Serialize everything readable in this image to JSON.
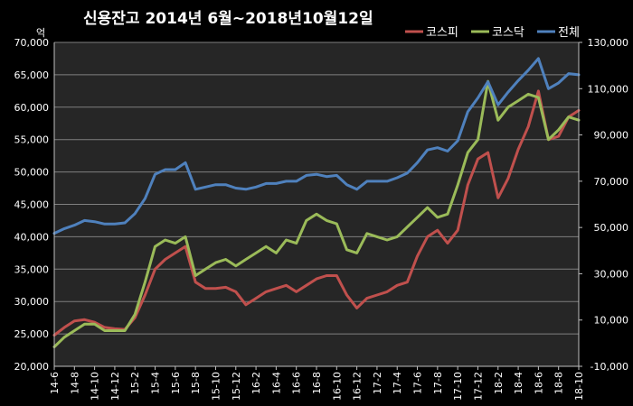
{
  "chart_data": {
    "type": "line",
    "title": "신용잔고  2014년 6월~2018년10월12일",
    "y_left_unit": "억",
    "legend_position": "top-right",
    "grid": true,
    "x_tick_labels": [
      "14-6",
      "14-8",
      "14-10",
      "14-12",
      "15-2",
      "15-4",
      "15-6",
      "15-8",
      "15-10",
      "15-12",
      "16-2",
      "16-4",
      "16-6",
      "16-8",
      "16-10",
      "16-12",
      "17-2",
      "17-4",
      "17-6",
      "17-8",
      "17-10",
      "17-12",
      "18-2",
      "18-4",
      "18-6",
      "18-8",
      "18-10"
    ],
    "y_left": {
      "min": 20000,
      "max": 70000,
      "step": 5000,
      "tick_labels": [
        "20,000",
        "25,000",
        "30,000",
        "35,000",
        "40,000",
        "45,000",
        "50,000",
        "55,000",
        "60,000",
        "65,000",
        "70,000"
      ]
    },
    "y_right": {
      "min": -10000,
      "max": 130000,
      "step": 20000,
      "tick_labels": [
        "-10,000",
        "10,000",
        "30,000",
        "50,000",
        "70,000",
        "90,000",
        "110,000",
        "130,000"
      ]
    },
    "x": [
      "2014-06",
      "2014-07",
      "2014-08",
      "2014-09",
      "2014-10",
      "2014-11",
      "2014-12",
      "2015-01",
      "2015-02",
      "2015-03",
      "2015-04",
      "2015-05",
      "2015-06",
      "2015-07",
      "2015-08",
      "2015-09",
      "2015-10",
      "2015-11",
      "2015-12",
      "2016-01",
      "2016-02",
      "2016-03",
      "2016-04",
      "2016-05",
      "2016-06",
      "2016-07",
      "2016-08",
      "2016-09",
      "2016-10",
      "2016-11",
      "2016-12",
      "2017-01",
      "2017-02",
      "2017-03",
      "2017-04",
      "2017-05",
      "2017-06",
      "2017-07",
      "2017-08",
      "2017-09",
      "2017-10",
      "2017-11",
      "2017-12",
      "2018-01",
      "2018-02",
      "2018-03",
      "2018-04",
      "2018-05",
      "2018-06",
      "2018-07",
      "2018-08",
      "2018-09",
      "2018-10"
    ],
    "series": [
      {
        "name": "코스피",
        "axis": "left",
        "color": "#c0504d",
        "values": [
          24800,
          26000,
          27000,
          27200,
          26800,
          26000,
          25800,
          25700,
          27500,
          31000,
          35000,
          36500,
          37500,
          38500,
          33000,
          32000,
          32000,
          32200,
          31500,
          29500,
          30500,
          31500,
          32000,
          32500,
          31500,
          32500,
          33500,
          34000,
          34000,
          31000,
          29000,
          30500,
          31000,
          31500,
          32500,
          33000,
          37000,
          40000,
          41000,
          39000,
          41000,
          48000,
          52000,
          53000,
          46000,
          49000,
          53500,
          57000,
          62500,
          55000,
          55500,
          58500,
          59500
        ]
      },
      {
        "name": "코스닥",
        "axis": "left",
        "color": "#9bbb59",
        "values": [
          23000,
          24500,
          25500,
          26500,
          26500,
          25500,
          25500,
          25500,
          28000,
          33000,
          38500,
          39500,
          39000,
          40000,
          34000,
          35000,
          36000,
          36500,
          35500,
          36500,
          37500,
          38500,
          37500,
          39500,
          39000,
          42500,
          43500,
          42500,
          42000,
          38000,
          37500,
          40500,
          40000,
          39500,
          40000,
          41500,
          43000,
          44500,
          43000,
          43500,
          48000,
          53000,
          55000,
          64000,
          58000,
          60000,
          61000,
          62000,
          61500,
          55000,
          56500,
          58500,
          58000
        ]
      },
      {
        "name": "전체",
        "axis": "right",
        "color": "#4f81bd",
        "values": [
          47500,
          49500,
          51000,
          53000,
          52500,
          51500,
          51500,
          52000,
          56000,
          62500,
          73000,
          75000,
          75000,
          78000,
          66500,
          67500,
          68500,
          68500,
          67000,
          66500,
          67500,
          69000,
          69000,
          70000,
          70000,
          72500,
          73000,
          72000,
          72500,
          68500,
          66500,
          70000,
          70000,
          70000,
          71500,
          73500,
          78000,
          83500,
          84500,
          83000,
          87500,
          100000,
          106000,
          113000,
          103000,
          108500,
          113500,
          118000,
          123000,
          110000,
          112500,
          116500,
          116000
        ]
      }
    ]
  }
}
